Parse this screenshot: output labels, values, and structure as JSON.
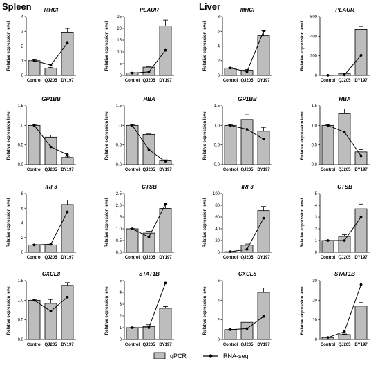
{
  "sections": {
    "left": "Spleen",
    "right": "Liver"
  },
  "legend": {
    "bar_label": "qPCR",
    "line_label": "RNA-seq",
    "bar_color": "#bdbdbd",
    "line_color": "#000000"
  },
  "chart_data": [
    {
      "type": "bar",
      "title": "MHCI",
      "tissue": "Spleen",
      "categories": [
        "Control",
        "QJ205",
        "DY197"
      ],
      "ylabel": "Relative expression level",
      "ylim": [
        0,
        4
      ],
      "yticks": [
        0,
        1,
        2,
        3,
        4
      ],
      "series": [
        {
          "name": "qPCR",
          "values": [
            1.0,
            0.5,
            2.9
          ],
          "errors": [
            0.05,
            0.05,
            0.3
          ]
        },
        {
          "name": "RNA-seq",
          "values": [
            1.0,
            0.7,
            2.2
          ]
        }
      ]
    },
    {
      "type": "bar",
      "title": "PLAUR",
      "tissue": "Spleen",
      "categories": [
        "Control",
        "QJ205",
        "DY197"
      ],
      "ylabel": "Relative expression level",
      "ylim": [
        0,
        25
      ],
      "yticks": [
        0,
        5,
        10,
        15,
        20,
        25
      ],
      "series": [
        {
          "name": "qPCR",
          "values": [
            1.0,
            3.5,
            21.0
          ],
          "errors": [
            0.2,
            0.3,
            2.5
          ]
        },
        {
          "name": "RNA-seq",
          "values": [
            1.0,
            1.5,
            10.7
          ]
        }
      ]
    },
    {
      "type": "bar",
      "title": "MHCI",
      "tissue": "Liver",
      "categories": [
        "Control",
        "QJ205",
        "DY197"
      ],
      "ylabel": "Relative expression level",
      "ylim": [
        0,
        8
      ],
      "yticks": [
        0,
        2,
        4,
        6,
        8
      ],
      "series": [
        {
          "name": "qPCR",
          "values": [
            1.0,
            0.7,
            5.4
          ],
          "errors": [
            0.05,
            0.1,
            0.7
          ]
        },
        {
          "name": "RNA-seq",
          "values": [
            1.0,
            0.5,
            6.0
          ]
        }
      ]
    },
    {
      "type": "bar",
      "title": "PLAUR",
      "tissue": "Liver",
      "categories": [
        "Control",
        "QJ205",
        "DY197"
      ],
      "ylabel": "Relative expression level",
      "ylim": [
        0,
        600
      ],
      "yticks": [
        0,
        200,
        400,
        600
      ],
      "series": [
        {
          "name": "qPCR",
          "values": [
            1,
            20,
            470
          ],
          "errors": [
            0,
            5,
            30
          ]
        },
        {
          "name": "RNA-seq",
          "values": [
            1,
            5,
            205
          ]
        }
      ]
    },
    {
      "type": "bar",
      "title": "GP1BB",
      "tissue": "Spleen",
      "categories": [
        "Control",
        "QJ205",
        "DY197"
      ],
      "ylabel": "Relative expression level",
      "ylim": [
        0,
        1.5
      ],
      "yticks": [
        0,
        0.5,
        1.0,
        1.5
      ],
      "series": [
        {
          "name": "qPCR",
          "values": [
            1.0,
            0.7,
            0.18
          ],
          "errors": [
            0.01,
            0.05,
            0.03
          ]
        },
        {
          "name": "RNA-seq",
          "values": [
            1.0,
            0.45,
            0.25
          ]
        }
      ]
    },
    {
      "type": "bar",
      "title": "HBA",
      "tissue": "Spleen",
      "categories": [
        "Control",
        "QJ205",
        "DY197"
      ],
      "ylabel": "Relative expression level",
      "ylim": [
        0,
        1.5
      ],
      "yticks": [
        0,
        0.5,
        1.0,
        1.5
      ],
      "series": [
        {
          "name": "qPCR",
          "values": [
            1.0,
            0.77,
            0.1
          ],
          "errors": [
            0.01,
            0.02,
            0.02
          ]
        },
        {
          "name": "RNA-seq",
          "values": [
            1.0,
            0.38,
            0.07
          ]
        }
      ]
    },
    {
      "type": "bar",
      "title": "GP1BB",
      "tissue": "Liver",
      "categories": [
        "Control",
        "QJ205",
        "DY197"
      ],
      "ylabel": "Relative expression level",
      "ylim": [
        0,
        1.5
      ],
      "yticks": [
        0,
        0.5,
        1.0,
        1.5
      ],
      "series": [
        {
          "name": "qPCR",
          "values": [
            1.0,
            1.15,
            0.85
          ],
          "errors": [
            0.01,
            0.12,
            0.1
          ]
        },
        {
          "name": "RNA-seq",
          "values": [
            1.0,
            0.9,
            0.65
          ]
        }
      ]
    },
    {
      "type": "bar",
      "title": "HBA",
      "tissue": "Liver",
      "categories": [
        "Control",
        "QJ205",
        "DY197"
      ],
      "ylabel": "Relative expression level",
      "ylim": [
        0,
        1.5
      ],
      "yticks": [
        0,
        0.5,
        1.0,
        1.5
      ],
      "series": [
        {
          "name": "qPCR",
          "values": [
            1.0,
            1.3,
            0.32
          ],
          "errors": [
            0.01,
            0.12,
            0.06
          ]
        },
        {
          "name": "RNA-seq",
          "values": [
            1.0,
            0.83,
            0.22
          ]
        }
      ]
    },
    {
      "type": "bar",
      "title": "IRF3",
      "tissue": "Spleen",
      "categories": [
        "Control",
        "QJ205",
        "DY197"
      ],
      "ylabel": "Relative expression level",
      "ylim": [
        0,
        8
      ],
      "yticks": [
        0,
        2,
        4,
        6,
        8
      ],
      "series": [
        {
          "name": "qPCR",
          "values": [
            1.0,
            1.0,
            6.5
          ],
          "errors": [
            0.05,
            0.1,
            0.6
          ]
        },
        {
          "name": "RNA-seq",
          "values": [
            1.0,
            1.1,
            5.5
          ]
        }
      ]
    },
    {
      "type": "bar",
      "title": "CTSB",
      "tissue": "Spleen",
      "categories": [
        "Control",
        "QJ205",
        "DY197"
      ],
      "ylabel": "Relative expression level",
      "ylim": [
        0,
        2.5
      ],
      "yticks": [
        0,
        0.5,
        1.0,
        1.5,
        2.0,
        2.5
      ],
      "series": [
        {
          "name": "qPCR",
          "values": [
            1.0,
            0.82,
            1.87
          ],
          "errors": [
            0.01,
            0.08,
            0.15
          ]
        },
        {
          "name": "RNA-seq",
          "values": [
            1.0,
            0.65,
            2.05
          ]
        }
      ]
    },
    {
      "type": "bar",
      "title": "IRF3",
      "tissue": "Liver",
      "categories": [
        "Control",
        "QJ205",
        "DY197"
      ],
      "ylabel": "Relative expression level",
      "ylim": [
        0,
        100
      ],
      "yticks": [
        0,
        20,
        40,
        60,
        80,
        100
      ],
      "series": [
        {
          "name": "qPCR",
          "values": [
            1,
            12,
            71
          ],
          "errors": [
            0,
            2,
            7
          ]
        },
        {
          "name": "RNA-seq",
          "values": [
            1,
            5,
            58
          ]
        }
      ]
    },
    {
      "type": "bar",
      "title": "CTSB",
      "tissue": "Liver",
      "categories": [
        "Control",
        "QJ205",
        "DY197"
      ],
      "ylabel": "Relative expression level",
      "ylim": [
        0,
        5
      ],
      "yticks": [
        0,
        1,
        2,
        3,
        4,
        5
      ],
      "series": [
        {
          "name": "qPCR",
          "values": [
            1.0,
            1.35,
            3.7
          ],
          "errors": [
            0.02,
            0.15,
            0.4
          ]
        },
        {
          "name": "RNA-seq",
          "values": [
            1.0,
            1.0,
            3.0
          ]
        }
      ]
    },
    {
      "type": "bar",
      "title": "CXCL8",
      "tissue": "Spleen",
      "categories": [
        "Control",
        "QJ205",
        "DY197"
      ],
      "ylabel": "Relative expression level",
      "ylim": [
        0,
        1.5
      ],
      "yticks": [
        0,
        0.5,
        1.0,
        1.5
      ],
      "series": [
        {
          "name": "qPCR",
          "values": [
            1.0,
            0.92,
            1.38
          ],
          "errors": [
            0.01,
            0.1,
            0.07
          ]
        },
        {
          "name": "RNA-seq",
          "values": [
            1.0,
            0.72,
            1.08
          ]
        }
      ]
    },
    {
      "type": "bar",
      "title": "STAT1B",
      "tissue": "Spleen",
      "categories": [
        "Control",
        "QJ205",
        "DY197"
      ],
      "ylabel": "Relative expression level",
      "ylim": [
        0,
        5
      ],
      "yticks": [
        0,
        1,
        2,
        3,
        4,
        5
      ],
      "series": [
        {
          "name": "qPCR",
          "values": [
            1.0,
            1.1,
            2.65
          ],
          "errors": [
            0.02,
            0.15,
            0.15
          ]
        },
        {
          "name": "RNA-seq",
          "values": [
            1.0,
            1.0,
            4.8
          ]
        }
      ]
    },
    {
      "type": "bar",
      "title": "CXCL8",
      "tissue": "Liver",
      "categories": [
        "Control",
        "QJ205",
        "DY197"
      ],
      "ylabel": "Relative expression level",
      "ylim": [
        0,
        6
      ],
      "yticks": [
        0,
        2,
        4,
        6
      ],
      "series": [
        {
          "name": "qPCR",
          "values": [
            1.0,
            1.75,
            4.8
          ],
          "errors": [
            0.02,
            0.12,
            0.45
          ]
        },
        {
          "name": "RNA-seq",
          "values": [
            1.0,
            1.1,
            2.35
          ]
        }
      ]
    },
    {
      "type": "bar",
      "title": "STAT1B",
      "tissue": "Liver",
      "categories": [
        "Control",
        "QJ205",
        "DY197"
      ],
      "ylabel": "Relative expression level",
      "ylim": [
        0,
        30
      ],
      "yticks": [
        0,
        10,
        20,
        30
      ],
      "series": [
        {
          "name": "qPCR",
          "values": [
            1,
            2.5,
            17
          ],
          "errors": [
            0,
            0.3,
            1.8
          ]
        },
        {
          "name": "RNA-seq",
          "values": [
            1,
            4,
            28
          ]
        }
      ]
    }
  ]
}
